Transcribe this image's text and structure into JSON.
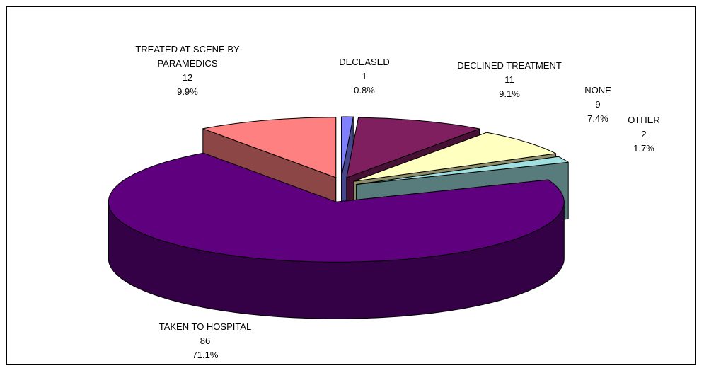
{
  "chart_data": {
    "type": "pie3d",
    "categories": [
      "DECEASED",
      "DECLINED TREATMENT",
      "NONE",
      "OTHER",
      "TAKEN TO HOSPITAL",
      "TREATED AT SCENE BY PARAMEDICS"
    ],
    "values": [
      1,
      11,
      9,
      2,
      86,
      12
    ],
    "percent_labels": [
      "0.8%",
      "9.1%",
      "7.4%",
      "1.7%",
      "71.1%",
      "9.9%"
    ],
    "colors": [
      "#8080ff",
      "#7f1f5f",
      "#ffffc0",
      "#a0e0e0",
      "#5f007f",
      "#ff8080"
    ]
  }
}
